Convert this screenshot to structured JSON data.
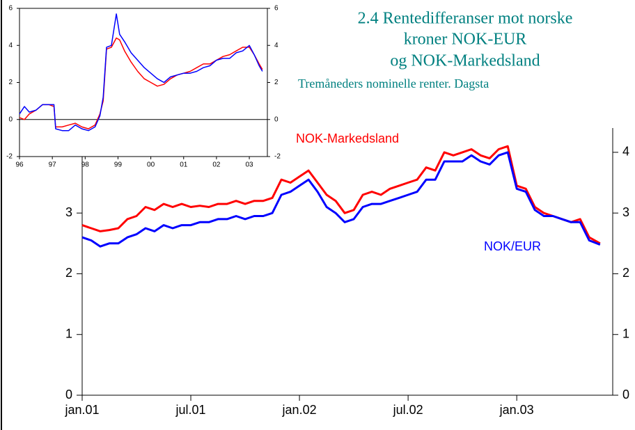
{
  "chart_data": [
    {
      "type": "line",
      "title": [
        "2.4 Rentedifferanser mot norske",
        "kroner NOK-EUR",
        "og NOK-Markedsland"
      ],
      "subtitle": "Tremåneders nominelle renter. Dagsta",
      "x": [
        0,
        0.5,
        1,
        1.5,
        2,
        2.5,
        3,
        3.5,
        4,
        4.5,
        5,
        5.5,
        6,
        6.5,
        7,
        7.5,
        8,
        8.5,
        9,
        9.5,
        10,
        10.5,
        11,
        11.5,
        12,
        12.5,
        13,
        13.5,
        14,
        14.5,
        15,
        15.5,
        16,
        16.5,
        17,
        17.5,
        18,
        18.5,
        19,
        19.5,
        20,
        20.5,
        21,
        21.5,
        22,
        22.5,
        23,
        23.5,
        24,
        24.5,
        25,
        25.5,
        26,
        26.5,
        27,
        27.5,
        28,
        28.6
      ],
      "xlim": [
        0,
        29.3
      ],
      "xticks": [
        {
          "value": 0,
          "label": "jan.01"
        },
        {
          "value": 6,
          "label": "jul.01"
        },
        {
          "value": 12,
          "label": "jan.02"
        },
        {
          "value": 18,
          "label": "jul.02"
        },
        {
          "value": 24,
          "label": "jan.03"
        }
      ],
      "ylim": [
        0,
        4.4
      ],
      "yticks": [
        0,
        1,
        2,
        3,
        4
      ],
      "series": [
        {
          "name": "NOK-Markedsland",
          "color": "#ff0000",
          "values": [
            2.8,
            2.75,
            2.7,
            2.72,
            2.75,
            2.9,
            2.95,
            3.1,
            3.05,
            3.15,
            3.1,
            3.15,
            3.1,
            3.12,
            3.1,
            3.15,
            3.15,
            3.2,
            3.15,
            3.2,
            3.2,
            3.25,
            3.55,
            3.5,
            3.6,
            3.7,
            3.5,
            3.3,
            3.2,
            3.0,
            3.05,
            3.3,
            3.35,
            3.3,
            3.4,
            3.45,
            3.5,
            3.55,
            3.75,
            3.7,
            4.0,
            3.95,
            4.0,
            4.05,
            3.95,
            3.9,
            4.05,
            4.1,
            3.45,
            3.4,
            3.1,
            3.0,
            2.95,
            2.9,
            2.85,
            2.9,
            2.6,
            2.5
          ]
        },
        {
          "name": "NOK/EUR",
          "color": "#0000ff",
          "values": [
            2.6,
            2.55,
            2.45,
            2.5,
            2.5,
            2.6,
            2.65,
            2.75,
            2.7,
            2.8,
            2.75,
            2.8,
            2.8,
            2.85,
            2.85,
            2.9,
            2.9,
            2.95,
            2.9,
            2.95,
            2.95,
            3.0,
            3.3,
            3.35,
            3.45,
            3.55,
            3.35,
            3.1,
            3.0,
            2.85,
            2.9,
            3.1,
            3.15,
            3.15,
            3.2,
            3.25,
            3.3,
            3.35,
            3.55,
            3.55,
            3.85,
            3.85,
            3.85,
            3.95,
            3.85,
            3.8,
            3.95,
            4.0,
            3.4,
            3.35,
            3.05,
            2.95,
            2.95,
            2.9,
            2.85,
            2.85,
            2.55,
            2.48
          ]
        }
      ]
    },
    {
      "type": "line",
      "x": [
        1996,
        1996.15,
        1996.3,
        1996.5,
        1996.7,
        1996.9,
        1997.05,
        1997.1,
        1997.3,
        1997.5,
        1997.7,
        1997.9,
        1998.1,
        1998.3,
        1998.45,
        1998.55,
        1998.65,
        1998.8,
        1998.95,
        1999.05,
        1999.2,
        1999.4,
        1999.6,
        1999.8,
        2000,
        2000.2,
        2000.4,
        2000.6,
        2000.8,
        2001,
        2001.2,
        2001.4,
        2001.6,
        2001.8,
        2002,
        2002.2,
        2002.4,
        2002.6,
        2002.8,
        2003,
        2003.15,
        2003.3,
        2003.4
      ],
      "xlim": [
        1996,
        2003.55
      ],
      "xticks": [
        {
          "value": 1996,
          "label": "96"
        },
        {
          "value": 1997,
          "label": "97"
        },
        {
          "value": 1998,
          "label": "98"
        },
        {
          "value": 1999,
          "label": "99"
        },
        {
          "value": 2000,
          "label": "00"
        },
        {
          "value": 2001,
          "label": "01"
        },
        {
          "value": 2002,
          "label": "02"
        },
        {
          "value": 2003,
          "label": "03"
        }
      ],
      "ylim": [
        -2,
        6
      ],
      "yticks": [
        -2,
        0,
        2,
        4,
        6
      ],
      "series": [
        {
          "name": null,
          "color": "#ff0000",
          "values": [
            0.1,
            0.0,
            0.3,
            0.5,
            0.8,
            0.8,
            0.7,
            -0.4,
            -0.4,
            -0.3,
            -0.2,
            -0.4,
            -0.5,
            -0.3,
            0.3,
            1.0,
            3.8,
            3.9,
            4.4,
            4.3,
            3.7,
            3.1,
            2.6,
            2.2,
            2.0,
            1.8,
            1.9,
            2.2,
            2.4,
            2.5,
            2.6,
            2.8,
            3.0,
            3.0,
            3.2,
            3.4,
            3.5,
            3.7,
            3.9,
            3.9,
            3.5,
            3.0,
            2.7
          ]
        },
        {
          "name": null,
          "color": "#0000ff",
          "values": [
            0.3,
            0.7,
            0.4,
            0.5,
            0.8,
            0.8,
            0.8,
            -0.5,
            -0.6,
            -0.6,
            -0.3,
            -0.5,
            -0.6,
            -0.4,
            0.2,
            1.2,
            3.9,
            4.0,
            5.7,
            4.6,
            4.2,
            3.6,
            3.2,
            2.8,
            2.5,
            2.2,
            2.0,
            2.3,
            2.4,
            2.5,
            2.5,
            2.6,
            2.8,
            2.9,
            3.2,
            3.3,
            3.3,
            3.6,
            3.7,
            4.0,
            3.5,
            2.9,
            2.6
          ]
        }
      ]
    }
  ]
}
